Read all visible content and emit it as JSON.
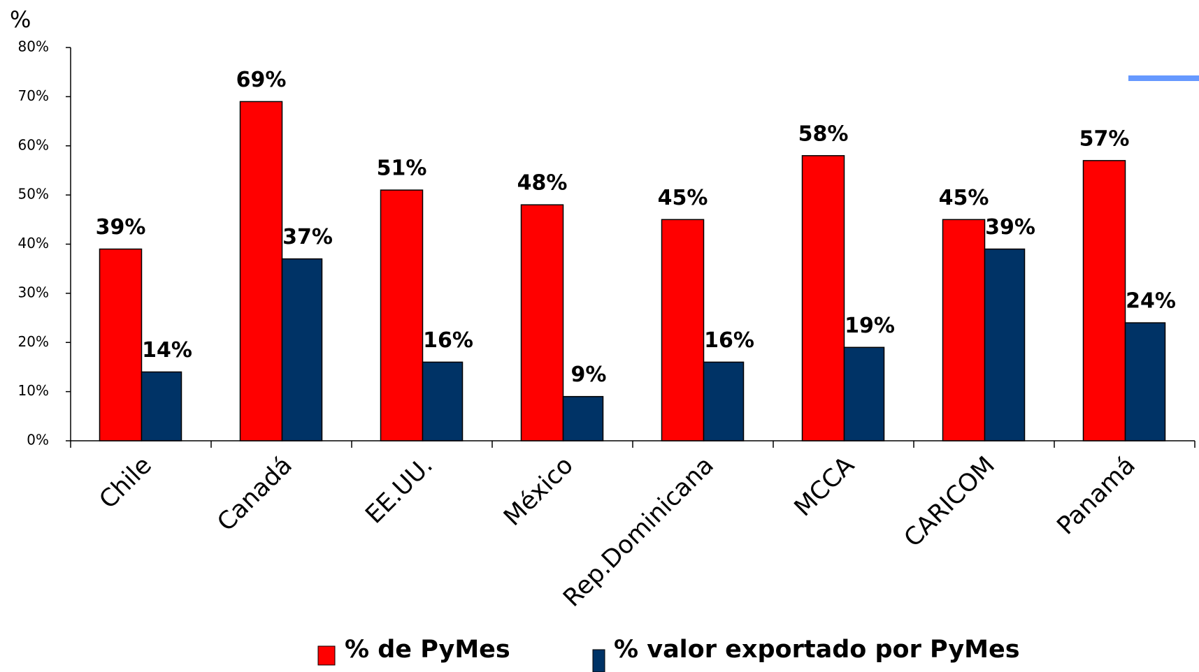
{
  "chart_data": {
    "type": "bar",
    "y_label": "%",
    "categories": [
      "Chile",
      "Canadá",
      "EE.UU.",
      "México",
      "Rep.Dominicana",
      "MCCA",
      "CARICOM",
      "Panamá"
    ],
    "series": [
      {
        "name": "% de PyMes",
        "color": "#ff0000",
        "values": [
          39,
          69,
          51,
          48,
          45,
          58,
          45,
          57
        ],
        "value_labels": [
          "39%",
          "69%",
          "51%",
          "48%",
          "45%",
          "58%",
          "45%",
          "57%"
        ]
      },
      {
        "name": "% valor exportado por PyMes",
        "color": "#003366",
        "values": [
          14,
          37,
          16,
          9,
          16,
          19,
          39,
          24
        ],
        "value_labels": [
          "14%",
          "37%",
          "16%",
          "9%",
          "16%",
          "19%",
          "39%",
          "24%"
        ]
      }
    ],
    "ylim": [
      0,
      80
    ],
    "yticks": [
      {
        "value": 0,
        "label": "0%"
      },
      {
        "value": 10,
        "label": "10%"
      },
      {
        "value": 20,
        "label": "20%"
      },
      {
        "value": 30,
        "label": "30%"
      },
      {
        "value": 40,
        "label": "40%"
      },
      {
        "value": 50,
        "label": "50%"
      },
      {
        "value": 60,
        "label": "60%"
      },
      {
        "value": 70,
        "label": "70%"
      },
      {
        "value": 80,
        "label": "80%"
      }
    ],
    "legend": "bottom"
  }
}
